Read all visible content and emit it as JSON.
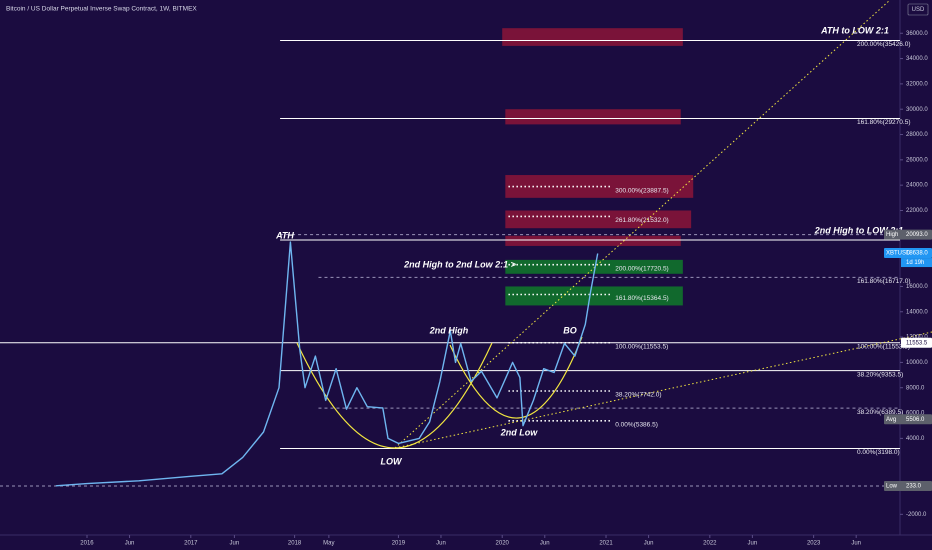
{
  "chart_data": {
    "type": "line",
    "title": "Bitcoin / US Dollar Perpetual Inverse Swap Contract, 1W, BITMEX",
    "currency": "USD",
    "color": "#6fb6f0",
    "x": [
      2015.7,
      2016.0,
      2016.5,
      2017.0,
      2017.3,
      2017.5,
      2017.7,
      2017.85,
      2017.96,
      2018.05,
      2018.1,
      2018.2,
      2018.3,
      2018.4,
      2018.5,
      2018.6,
      2018.7,
      2018.85,
      2018.9,
      2019.0,
      2019.2,
      2019.3,
      2019.4,
      2019.5,
      2019.55,
      2019.6,
      2019.7,
      2019.8,
      2019.95,
      2020.1,
      2020.17,
      2020.2,
      2020.3,
      2020.4,
      2020.5,
      2020.6,
      2020.7,
      2020.8,
      2020.85,
      2020.92
    ],
    "values": [
      250,
      430,
      650,
      1000,
      1200,
      2500,
      4500,
      8000,
      19500,
      11000,
      8000,
      10500,
      7000,
      9500,
      6300,
      8000,
      6500,
      6400,
      4000,
      3600,
      4000,
      5300,
      8500,
      12500,
      10000,
      11500,
      8500,
      9300,
      7200,
      10000,
      8800,
      5000,
      7000,
      9500,
      9200,
      11500,
      10500,
      13000,
      15500,
      18600
    ],
    "xlim": [
      2015.162,
      2023.832
    ],
    "ylim": [
      -3633,
      38626
    ],
    "xticks": [
      2016,
      {
        "value": 2016.41,
        "label": "Jun"
      },
      2017,
      {
        "value": 2017.42,
        "label": "Jun"
      },
      2018,
      {
        "value": 2018.33,
        "label": "May"
      },
      2019,
      {
        "value": 2019.41,
        "label": "Jun"
      },
      2020,
      {
        "value": 2020.41,
        "label": "Jun"
      },
      2021,
      {
        "value": 2021.41,
        "label": "Jun"
      },
      2022,
      {
        "value": 2022.41,
        "label": "Jun"
      },
      2023,
      {
        "value": 2023.41,
        "label": "Jun"
      }
    ],
    "yticks": [
      {
        "value": 36000,
        "label": "36000.0"
      },
      {
        "value": 34000,
        "label": "34000.0"
      },
      {
        "value": 32000,
        "label": "32000.0"
      },
      {
        "value": 30000,
        "label": "30000.0"
      },
      {
        "value": 28000,
        "label": "28000.0"
      },
      {
        "value": 26000,
        "label": "26000.0"
      },
      {
        "value": 24000,
        "label": "24000.0"
      },
      {
        "value": 22000,
        "label": "22000.0"
      },
      {
        "value": 16000,
        "label": "16000.0"
      },
      {
        "value": 14000,
        "label": "14000.0"
      },
      {
        "value": 12000,
        "label": "12000.0"
      },
      {
        "value": 10000,
        "label": "10000.0"
      },
      {
        "value": 8000,
        "label": "8000.0"
      },
      {
        "value": 6000,
        "label": "6000.0"
      },
      {
        "value": 4000,
        "label": "4000.0"
      },
      {
        "value": -2000,
        "label": "-2000.0"
      }
    ],
    "levels": [
      {
        "value": 35426,
        "label": "200.00%(35426.0)",
        "x": [
          2017.86,
          2023.832
        ],
        "style": "solid"
      },
      {
        "value": 29270.5,
        "label": "161.80%(29270.5)",
        "x": [
          2017.86,
          2023.832
        ],
        "style": "solid"
      },
      {
        "value": 19666,
        "x": [
          2017.86,
          2023.832
        ],
        "style": "solid"
      },
      {
        "value": 20093,
        "x": [
          2017.86,
          2023.832
        ],
        "style": "dashed"
      },
      {
        "value": 16717,
        "label": "161.80%(16717.0)",
        "x": [
          2018.23,
          2023.832
        ],
        "style": "dashed"
      },
      {
        "value": 11553.5,
        "label": "100.00%(11553.5)",
        "x": [
          2015.162,
          2023.832
        ],
        "style": "solid"
      },
      {
        "value": 9353.5,
        "label": "38.20%(9353.5)",
        "x": [
          2017.86,
          2023.832
        ],
        "style": "solid"
      },
      {
        "value": 6389.5,
        "label": "38.20%(6389.5)",
        "x": [
          2018.23,
          2023.832
        ],
        "style": "dashed"
      },
      {
        "value": 3198,
        "label": "0.00%(3198.0)",
        "x": [
          2017.86,
          2023.832
        ],
        "style": "solid"
      },
      {
        "value": 233,
        "x": [
          2015.162,
          2023.832
        ],
        "style": "dashed"
      },
      {
        "value": 23887.5,
        "label": "300.00%(23887.5)",
        "x": [
          2020.06,
          2021.06
        ],
        "style": "dotted"
      },
      {
        "value": 21532,
        "label": "261.80%(21532.0)",
        "x": [
          2020.06,
          2021.06
        ],
        "style": "dotted"
      },
      {
        "value": 17720.5,
        "label": "200.00%(17720.5)",
        "x": [
          2020.06,
          2021.06
        ],
        "style": "dotted"
      },
      {
        "value": 15364.5,
        "label": "161.80%(15364.5)",
        "x": [
          2020.06,
          2021.06
        ],
        "style": "dotted"
      },
      {
        "value": 11553.5,
        "label": "100.00%(11553.5)",
        "x": [
          2020.06,
          2021.06
        ],
        "style": "dotted"
      },
      {
        "value": 7742,
        "label": "38.20%(7742.0)",
        "x": [
          2020.06,
          2021.06
        ],
        "style": "dotted"
      },
      {
        "value": 5386.5,
        "label": "0.00%(5386.5)",
        "x": [
          2020.06,
          2021.06
        ],
        "style": "dotted"
      }
    ],
    "zones": [
      {
        "y": [
          35000,
          36400
        ],
        "x": [
          2020.0,
          2021.74
        ],
        "color": "#8b1538"
      },
      {
        "y": [
          28800,
          30000
        ],
        "x": [
          2020.03,
          2021.72
        ],
        "color": "#8b1538"
      },
      {
        "y": [
          23000,
          24800
        ],
        "x": [
          2020.03,
          2021.84
        ],
        "color": "#8b1538"
      },
      {
        "y": [
          20600,
          22000
        ],
        "x": [
          2020.03,
          2021.82
        ],
        "color": "#8b1538"
      },
      {
        "y": [
          19200,
          20000
        ],
        "x": [
          2020.03,
          2021.72
        ],
        "color": "#8b1538"
      },
      {
        "y": [
          17000,
          18100
        ],
        "x": [
          2020.03,
          2021.74
        ],
        "color": "#0f7a2a"
      },
      {
        "y": [
          14500,
          16000
        ],
        "x": [
          2020.03,
          2021.74
        ],
        "color": "#0f7a2a"
      }
    ],
    "annotations": [
      "ATH to LOW 2:1",
      "2nd High to LOW 2:1",
      "2nd High to 2nd Low 2:1 >",
      "ATH",
      "2nd High",
      "BO",
      "2nd Low",
      "LOW"
    ],
    "axis_tags": [
      {
        "name": "High",
        "label": "20093.0",
        "value": 20093,
        "color": "#5d606b"
      },
      {
        "name": "XBTUSD",
        "label": "18638.0",
        "value": 18638,
        "color": "#2196f3",
        "sub": "1d 19h"
      },
      {
        "label": "11553.5",
        "value": 11553.5,
        "color": "#ffffff"
      },
      {
        "name": "Avg",
        "label": "5506.0",
        "value": 5506,
        "color": "#5d606b"
      },
      {
        "name": "Low",
        "label": "233.0",
        "value": 233,
        "color": "#5d606b"
      }
    ]
  }
}
